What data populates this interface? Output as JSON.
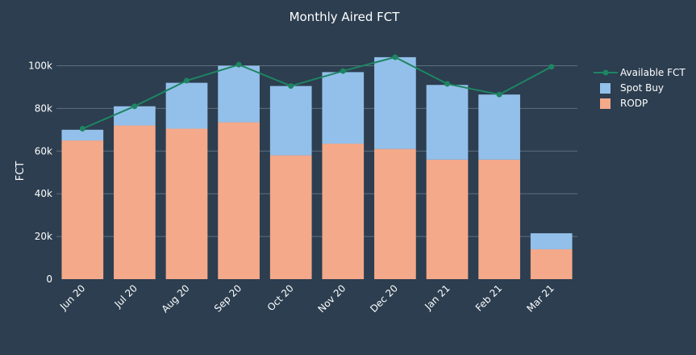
{
  "chart_data": {
    "type": "bar",
    "barmode": "stack",
    "title": "Monthly Aired FCT",
    "xlabel": "",
    "ylabel": "FCT",
    "ylim": [
      0,
      110000
    ],
    "yticks": [
      0,
      20000,
      40000,
      60000,
      80000,
      100000
    ],
    "ytick_labels": [
      "0",
      "20k",
      "40k",
      "60k",
      "80k",
      "100k"
    ],
    "grid": true,
    "categories": [
      "Jun 20",
      "Jul 20",
      "Aug 20",
      "Sep 20",
      "Oct 20",
      "Nov 20",
      "Dec 20",
      "Jan 21",
      "Feb 21",
      "Mar 21"
    ],
    "series": [
      {
        "name": "RODP",
        "kind": "bar",
        "color": "#f4a98a",
        "values": [
          65000,
          72000,
          70500,
          73500,
          58000,
          63500,
          61000,
          56000,
          56000,
          14000
        ]
      },
      {
        "name": "Spot Buy",
        "kind": "bar",
        "color": "#93c0ea",
        "values": [
          5000,
          9000,
          21500,
          26500,
          32500,
          33500,
          43000,
          35000,
          30500,
          7500
        ]
      },
      {
        "name": "Available FCT",
        "kind": "line",
        "color": "#1e8562",
        "values": [
          70500,
          81000,
          93000,
          100500,
          90500,
          97500,
          104000,
          91500,
          86500,
          99500
        ]
      }
    ],
    "legend": {
      "position": "top-right",
      "order": [
        "Available FCT",
        "Spot Buy",
        "RODP"
      ]
    }
  }
}
